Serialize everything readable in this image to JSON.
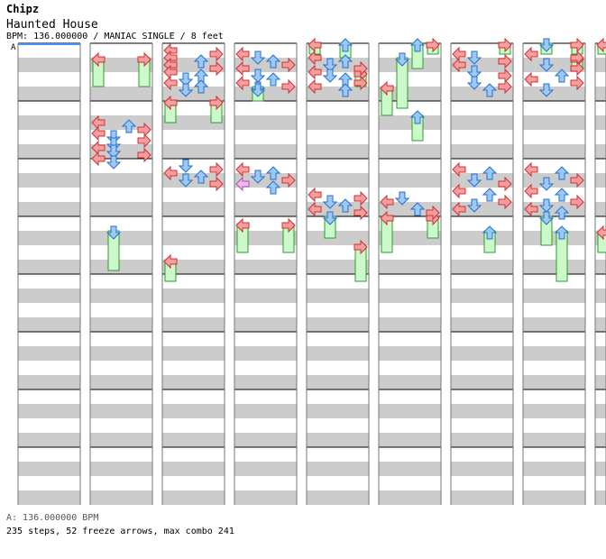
{
  "header": {
    "artist": "Chipz",
    "title": "Haunted House",
    "meta": "BPM: 136.000000 / MANIAC SINGLE / 8 feet",
    "section_marker": "A"
  },
  "footer": {
    "bpm_line": "A: 136.000000 BPM",
    "stats_line": "235 steps, 52 freeze arrows, max combo 241"
  },
  "colors": {
    "stripe": "#cccccc",
    "background": "#ffffff",
    "measure_line": "#000000",
    "red_arrow": "#f4a0a0",
    "red_arrow_border": "#d03030",
    "blue_arrow": "#9cc8f8",
    "blue_arrow_border": "#2870c8",
    "pink_arrow": "#f0b8f0",
    "pink_arrow_border": "#b050b0",
    "freeze_fill": "#ccf8cc",
    "freeze_border": "#28a028",
    "cursor_line": "#4090ff"
  },
  "chart_data": {
    "type": "step-chart",
    "layout": "four columns of 64 beats (8 measures each) per strip",
    "lanes": [
      "left",
      "down",
      "up",
      "right"
    ],
    "measures_per_column": 8,
    "total_columns": 9,
    "notes": [
      [
        2,
        0,
        0.0
      ],
      [
        2,
        3,
        0.25
      ],
      [
        2,
        0,
        0.5
      ],
      [
        2,
        2,
        0.75
      ],
      [
        2,
        0,
        1.0
      ],
      [
        2,
        3,
        1.25
      ],
      [
        2,
        0,
        1.5
      ],
      [
        2,
        2,
        1.75
      ],
      [
        2,
        1,
        2.0
      ],
      [
        2,
        0,
        2.25
      ],
      [
        2,
        2,
        2.5
      ],
      [
        2,
        1,
        2.75
      ],
      [
        3,
        0,
        0.25
      ],
      [
        3,
        1,
        0.5
      ],
      [
        3,
        2,
        0.75
      ],
      [
        3,
        3,
        1.0
      ],
      [
        3,
        0,
        1.25
      ],
      [
        3,
        1,
        1.75
      ],
      [
        3,
        2,
        2.0
      ],
      [
        3,
        0,
        2.25
      ],
      [
        3,
        3,
        2.5
      ],
      [
        3,
        1,
        2.75
      ],
      [
        4,
        0,
        0.5
      ],
      [
        4,
        2,
        0.75
      ],
      [
        4,
        1,
        1.0
      ],
      [
        4,
        3,
        1.25
      ],
      [
        4,
        0,
        1.5
      ],
      [
        4,
        1,
        1.75
      ],
      [
        4,
        2,
        2.0
      ],
      [
        4,
        3,
        2.25
      ],
      [
        4,
        0,
        2.5
      ],
      [
        4,
        2,
        2.75
      ],
      [
        6,
        0,
        0.25
      ],
      [
        6,
        1,
        0.5
      ],
      [
        6,
        3,
        0.75
      ],
      [
        6,
        0,
        1.0
      ],
      [
        6,
        1,
        1.5
      ],
      [
        6,
        3,
        1.75
      ],
      [
        6,
        1,
        2.25
      ],
      [
        6,
        3,
        2.5
      ],
      [
        6,
        2,
        2.75
      ],
      [
        7,
        0,
        0.25
      ],
      [
        7,
        3,
        0.5
      ],
      [
        7,
        1,
        1.0
      ],
      [
        7,
        3,
        1.25
      ],
      [
        7,
        2,
        1.75
      ],
      [
        7,
        0,
        2.0
      ],
      [
        7,
        3,
        2.25
      ],
      [
        7,
        1,
        2.75
      ],
      [
        1,
        0,
        5.0
      ],
      [
        1,
        2,
        5.25
      ],
      [
        1,
        3,
        5.5
      ],
      [
        1,
        0,
        5.75
      ],
      [
        1,
        1,
        6.0
      ],
      [
        1,
        3,
        6.25
      ],
      [
        1,
        1,
        6.5
      ],
      [
        1,
        0,
        6.75
      ],
      [
        1,
        1,
        7.0
      ],
      [
        1,
        3,
        7.25
      ],
      [
        1,
        0,
        7.5
      ],
      [
        1,
        1,
        7.75
      ],
      [
        2,
        1,
        8.0
      ],
      [
        2,
        3,
        8.25
      ],
      [
        2,
        0,
        8.5
      ],
      [
        2,
        2,
        8.75
      ],
      [
        2,
        1,
        9.0
      ],
      [
        2,
        3,
        9.25
      ],
      [
        3,
        0,
        8.25
      ],
      [
        3,
        2,
        8.5
      ],
      [
        3,
        1,
        8.75
      ],
      [
        3,
        3,
        9.0
      ],
      [
        3,
        0,
        9.25
      ],
      [
        3,
        2,
        9.5
      ],
      [
        4,
        0,
        10.0
      ],
      [
        4,
        3,
        10.25
      ],
      [
        4,
        1,
        10.5
      ],
      [
        4,
        2,
        10.75
      ],
      [
        4,
        0,
        11.0
      ],
      [
        4,
        3,
        11.25
      ],
      [
        5,
        1,
        10.25
      ],
      [
        5,
        0,
        10.5
      ],
      [
        5,
        2,
        11.0
      ],
      [
        5,
        3,
        11.25
      ],
      [
        6,
        0,
        8.25
      ],
      [
        6,
        2,
        8.5
      ],
      [
        6,
        1,
        9.0
      ],
      [
        6,
        3,
        9.25
      ],
      [
        6,
        0,
        9.75
      ],
      [
        6,
        2,
        10.0
      ],
      [
        6,
        3,
        10.5
      ],
      [
        6,
        1,
        10.75
      ],
      [
        6,
        0,
        11.0
      ],
      [
        7,
        0,
        8.25
      ],
      [
        7,
        2,
        8.5
      ],
      [
        7,
        3,
        9.0
      ],
      [
        7,
        1,
        9.25
      ],
      [
        7,
        0,
        9.75
      ],
      [
        7,
        2,
        10.0
      ],
      [
        7,
        3,
        10.5
      ],
      [
        7,
        1,
        10.75
      ],
      [
        7,
        0,
        11.0
      ],
      [
        7,
        2,
        11.25
      ]
    ],
    "freezes": [
      [
        1,
        0,
        1.0,
        2.5
      ],
      [
        1,
        3,
        1.0,
        2.5
      ],
      [
        2,
        0,
        4.0,
        5.0
      ],
      [
        2,
        3,
        4.0,
        5.0
      ],
      [
        3,
        1,
        3.0,
        3.5
      ],
      [
        4,
        0,
        0.0,
        0.25
      ],
      [
        4,
        2,
        0.0,
        0.5
      ],
      [
        4,
        3,
        2.0,
        2.5
      ],
      [
        5,
        2,
        0.0,
        1.25
      ],
      [
        5,
        3,
        0.0,
        0.25
      ],
      [
        5,
        1,
        1.0,
        4.0
      ],
      [
        5,
        0,
        3.0,
        4.5
      ],
      [
        5,
        2,
        5.0,
        6.25
      ],
      [
        6,
        3,
        0.0,
        0.25
      ],
      [
        7,
        1,
        0.0,
        0.25
      ],
      [
        7,
        3,
        0.0,
        0.25
      ],
      [
        8,
        0,
        0.0,
        0.25
      ],
      [
        7,
        3,
        1.0,
        1.25
      ],
      [
        1,
        1,
        13.0,
        15.25
      ],
      [
        2,
        0,
        15.0,
        16.0
      ],
      [
        3,
        0,
        12.5,
        14.0
      ],
      [
        3,
        3,
        12.5,
        14.0
      ],
      [
        4,
        1,
        12.0,
        13.0
      ],
      [
        4,
        3,
        14.0,
        16.0
      ],
      [
        5,
        0,
        12.0,
        14.0
      ],
      [
        5,
        3,
        12.0,
        13.0
      ],
      [
        6,
        2,
        13.0,
        14.0
      ],
      [
        7,
        1,
        12.0,
        13.5
      ],
      [
        7,
        2,
        13.0,
        16.0
      ],
      [
        8,
        0,
        13.0,
        14.0
      ],
      [
        8,
        3,
        14.0,
        16.0
      ]
    ]
  }
}
